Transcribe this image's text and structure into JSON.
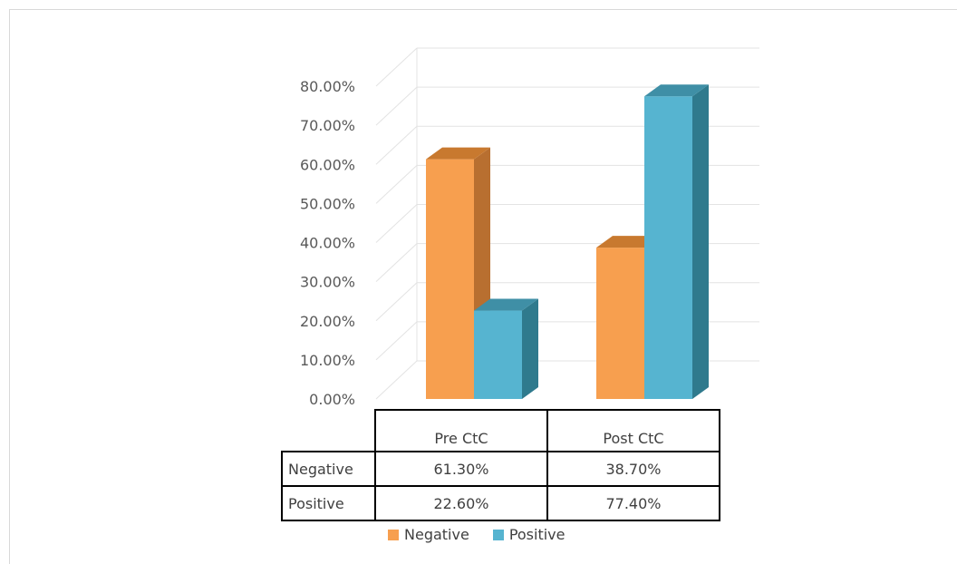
{
  "chart_data": {
    "type": "bar",
    "categories": [
      "Pre CtC",
      "Post CtC"
    ],
    "series": [
      {
        "name": "Negative",
        "values": [
          61.3,
          38.7
        ],
        "color": "#f79f4f",
        "side_color": "#b86f30",
        "top_color": "#c8792f"
      },
      {
        "name": "Positive",
        "values": [
          22.6,
          77.4
        ],
        "color": "#56b4d0",
        "side_color": "#2f7a8d",
        "top_color": "#3f8fa6"
      }
    ],
    "ylim": [
      0,
      80
    ],
    "yticks": [
      "0.00%",
      "10.00%",
      "20.00%",
      "30.00%",
      "40.00%",
      "50.00%",
      "60.00%",
      "70.00%",
      "80.00%"
    ],
    "grid": true,
    "legend": "bottom",
    "data_table": {
      "rows": [
        {
          "label": "Negative",
          "cells": [
            "61.30%",
            "38.70%"
          ]
        },
        {
          "label": "Positive",
          "cells": [
            "22.60%",
            "77.40%"
          ]
        }
      ]
    }
  }
}
